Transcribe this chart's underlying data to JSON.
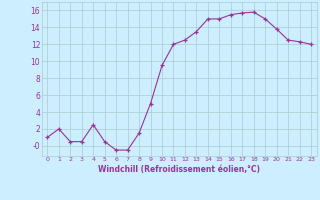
{
  "x": [
    0,
    1,
    2,
    3,
    4,
    5,
    6,
    7,
    8,
    9,
    10,
    11,
    12,
    13,
    14,
    15,
    16,
    17,
    18,
    19,
    20,
    21,
    22,
    23
  ],
  "y": [
    1,
    2,
    0.5,
    0.5,
    2.5,
    0.5,
    -0.5,
    -0.5,
    1.5,
    5,
    9.5,
    12,
    12.5,
    13.5,
    15,
    15,
    15.5,
    15.7,
    15.8,
    15,
    13.8,
    12.5,
    12.3,
    12
  ],
  "line_color": "#993399",
  "marker": "+",
  "bg_color": "#cceeff",
  "grid_color": "#aacccc",
  "xlabel": "Windchill (Refroidissement éolien,°C)",
  "xlabel_color": "#993399",
  "tick_color": "#993399",
  "ylim": [
    -1.2,
    17
  ],
  "xlim": [
    -0.5,
    23.5
  ],
  "yticks": [
    0,
    2,
    4,
    6,
    8,
    10,
    12,
    14,
    16
  ],
  "ytick_labels": [
    "-0",
    "2",
    "4",
    "6",
    "8",
    "10",
    "12",
    "14",
    "16"
  ],
  "xticks": [
    0,
    1,
    2,
    3,
    4,
    5,
    6,
    7,
    8,
    9,
    10,
    11,
    12,
    13,
    14,
    15,
    16,
    17,
    18,
    19,
    20,
    21,
    22,
    23
  ]
}
